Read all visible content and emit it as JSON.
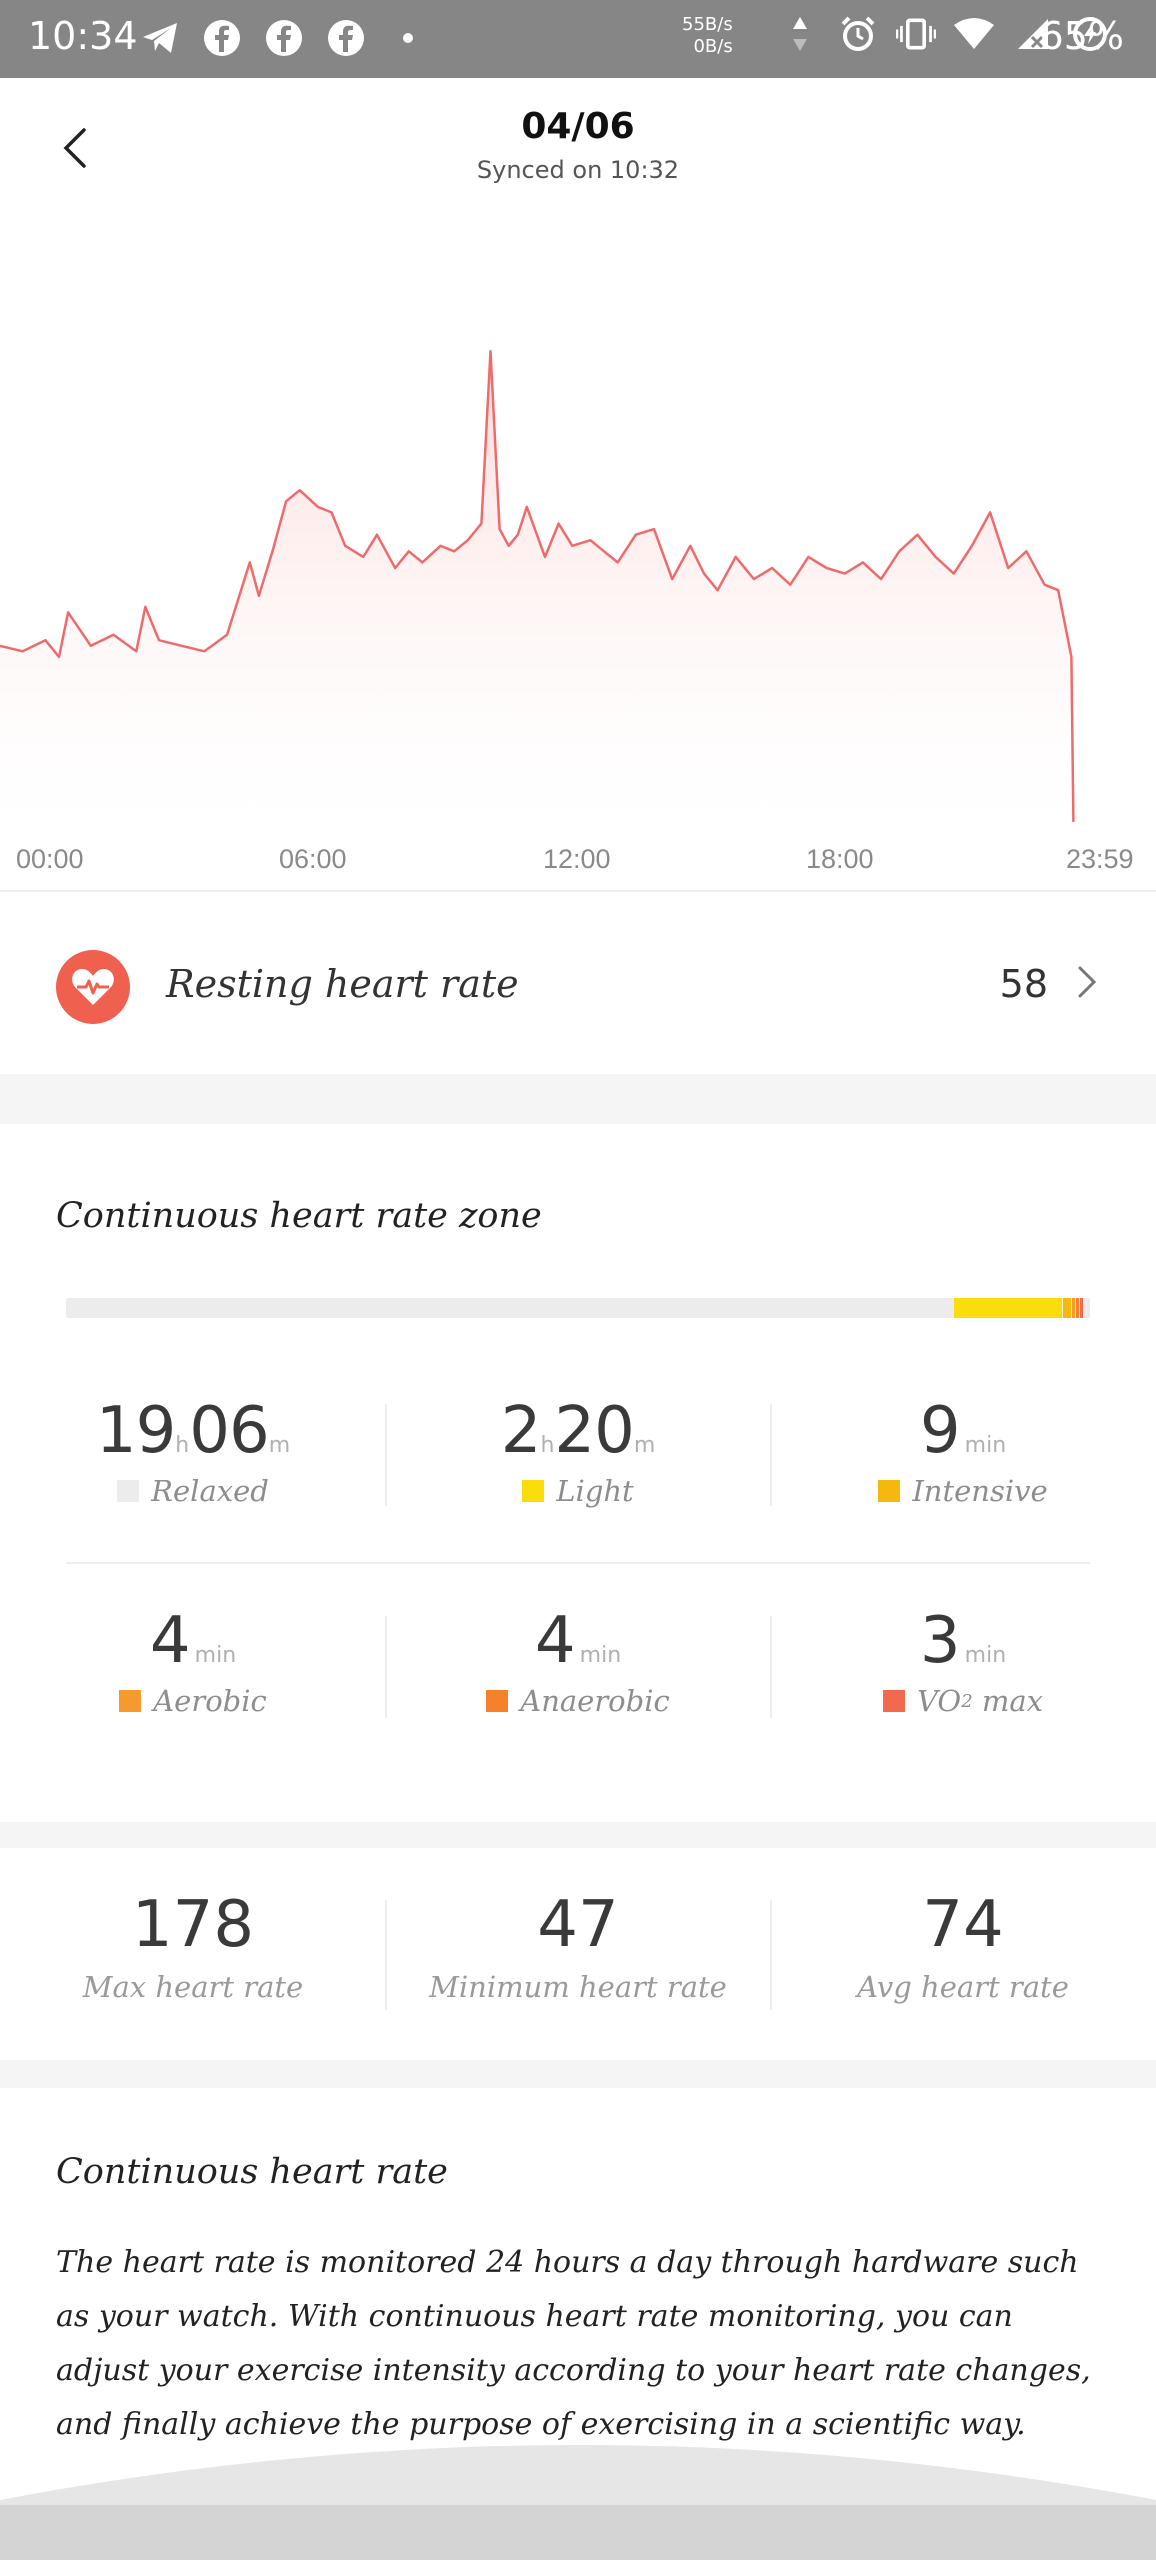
{
  "status_bar": {
    "time": "10:34",
    "net_up": "55B/s",
    "net_down": "0B/s",
    "battery": "65%",
    "icons": [
      "telegram-icon",
      "facebook-icon",
      "facebook-icon",
      "facebook-icon",
      "dot-icon",
      "alarm-icon",
      "vibrate-icon",
      "wifi-icon",
      "signal-icon",
      "battery-saver-icon"
    ]
  },
  "header": {
    "date": "04/06",
    "synced": "Synced on 10:32"
  },
  "chart": {
    "x_ticks": [
      "00:00",
      "06:00",
      "12:00",
      "18:00",
      "23:59"
    ],
    "line_color": "#ef6b6b"
  },
  "chart_data": {
    "type": "area",
    "title": "",
    "xlabel": "",
    "ylabel": "",
    "x_hours": [
      0,
      0.5,
      1,
      1.3,
      1.5,
      2,
      2.5,
      3,
      3.2,
      3.5,
      4,
      4.5,
      5,
      5.5,
      5.7,
      6,
      6.3,
      6.6,
      7,
      7.3,
      7.6,
      8,
      8.3,
      8.7,
      9,
      9.3,
      9.7,
      10,
      10.3,
      10.6,
      10.8,
      11,
      11.2,
      11.4,
      11.6,
      12,
      12.3,
      12.6,
      13,
      13.3,
      13.6,
      14,
      14.4,
      14.8,
      15.2,
      15.5,
      15.8,
      16.2,
      16.6,
      17,
      17.4,
      17.8,
      18.2,
      18.6,
      19,
      19.4,
      19.8,
      20.2,
      20.6,
      21,
      21.4,
      21.8,
      22.2,
      22.6,
      23,
      23.3,
      23.59
    ],
    "bpm": [
      62,
      61,
      63,
      60,
      68,
      62,
      64,
      61,
      69,
      63,
      62,
      61,
      64,
      77,
      71,
      79,
      88,
      90,
      87,
      86,
      80,
      78,
      82,
      76,
      79,
      77,
      80,
      79,
      81,
      84,
      115,
      83,
      80,
      82,
      87,
      78,
      84,
      80,
      81,
      79,
      77,
      82,
      83,
      74,
      80,
      75,
      72,
      78,
      74,
      76,
      73,
      78,
      76,
      75,
      77,
      74,
      79,
      82,
      78,
      75,
      80,
      86,
      76,
      79,
      73,
      72,
      60
    ],
    "ylim": [
      40,
      130
    ]
  },
  "resting": {
    "label": "Resting heart rate",
    "value": "58"
  },
  "zones": {
    "title": "Continuous heart rate zone",
    "bar_fractions": {
      "relaxed": 0.867,
      "light": 0.106,
      "intensive": 0.007,
      "aerobic": 0.003,
      "anaerobic": 0.003,
      "vo2": 0.002
    },
    "items": [
      {
        "key": "relaxed",
        "num1": "19",
        "u1": "h",
        "num2": "06",
        "u2": "m",
        "label": "Relaxed",
        "color": "#ececec"
      },
      {
        "key": "light",
        "num1": "2",
        "u1": "h",
        "num2": "20",
        "u2": "m",
        "label": "Light",
        "color": "#fadd0b"
      },
      {
        "key": "intensive",
        "num1": "9",
        "u1": "min",
        "num2": "",
        "u2": "",
        "label": "Intensive",
        "color": "#f5b80f"
      },
      {
        "key": "aerobic",
        "num1": "4",
        "u1": "min",
        "num2": "",
        "u2": "",
        "label": "Aerobic",
        "color": "#f79a2e"
      },
      {
        "key": "anaerobic",
        "num1": "4",
        "u1": "min",
        "num2": "",
        "u2": "",
        "label": "Anaerobic",
        "color": "#f5812a"
      },
      {
        "key": "vo2",
        "num1": "3",
        "u1": "min",
        "num2": "",
        "u2": "",
        "label": "VO",
        "label_sub": "2",
        "label_tail": " max",
        "color": "#f16a50"
      }
    ]
  },
  "hr_stats": [
    {
      "value": "178",
      "label": "Max heart rate"
    },
    {
      "value": "47",
      "label": "Minimum heart rate"
    },
    {
      "value": "74",
      "label": "Avg heart rate"
    }
  ],
  "info": {
    "title": "Continuous heart rate",
    "body": "The heart rate is monitored 24 hours a day through hardware such as your watch. With continuous heart rate monitoring, you can adjust your exercise intensity according to your heart rate changes, and finally achieve the purpose of exercising in a scientific way."
  }
}
